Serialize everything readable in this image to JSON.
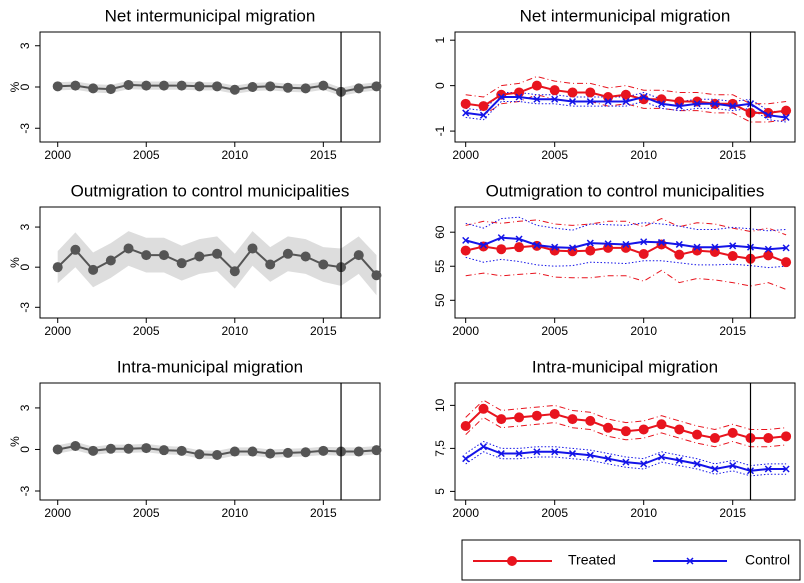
{
  "chart_data": [
    {
      "type": "line",
      "title": "Net intermunicipal migration",
      "ylabel": "%",
      "x": [
        2000,
        2001,
        2002,
        2003,
        2004,
        2005,
        2006,
        2007,
        2008,
        2009,
        2010,
        2011,
        2012,
        2013,
        2014,
        2015,
        2016,
        2017,
        2018
      ],
      "xlim": [
        1999,
        2018.2
      ],
      "xticks": [
        2000,
        2005,
        2010,
        2015
      ],
      "ylim": [
        -4,
        4
      ],
      "yticks": [
        -3,
        0,
        3
      ],
      "vline": 2016,
      "series": [
        {
          "color": "#555555",
          "band_color": "#dddddd",
          "values": [
            0.05,
            0.1,
            -0.1,
            -0.15,
            0.15,
            0.1,
            0.1,
            0.1,
            0.05,
            0.05,
            -0.2,
            0,
            0.05,
            -0.05,
            -0.1,
            0.1,
            -0.35,
            -0.1,
            0.05
          ],
          "ci_lower": [
            -0.25,
            -0.2,
            -0.4,
            -0.45,
            -0.15,
            -0.2,
            -0.2,
            -0.2,
            -0.25,
            -0.25,
            -0.5,
            -0.3,
            -0.25,
            -0.35,
            -0.4,
            -0.2,
            -0.65,
            -0.4,
            -0.25
          ],
          "ci_upper": [
            0.35,
            0.4,
            0.2,
            0.15,
            0.45,
            0.4,
            0.4,
            0.4,
            0.35,
            0.35,
            0.1,
            0.3,
            0.35,
            0.25,
            0.2,
            0.4,
            -0.05,
            0.2,
            0.35
          ]
        }
      ]
    },
    {
      "type": "line",
      "title": "Net intermunicipal migration",
      "x": [
        2000,
        2001,
        2002,
        2003,
        2004,
        2005,
        2006,
        2007,
        2008,
        2009,
        2010,
        2011,
        2012,
        2013,
        2014,
        2015,
        2016,
        2017,
        2018
      ],
      "xlim": [
        1999.4,
        2018.5
      ],
      "xticks": [
        2000,
        2005,
        2010,
        2015
      ],
      "ylim": [
        -1.24,
        1.18
      ],
      "yticks": [
        -1,
        0,
        1
      ],
      "vline": 2016,
      "series": [
        {
          "name": "Treated",
          "color": "#e8141e",
          "marker": "circle",
          "values": [
            -0.4,
            -0.45,
            -0.2,
            -0.15,
            0.0,
            -0.1,
            -0.15,
            -0.15,
            -0.25,
            -0.2,
            -0.3,
            -0.3,
            -0.35,
            -0.35,
            -0.4,
            -0.4,
            -0.6,
            -0.6,
            -0.55
          ],
          "ci_lower": [
            -0.6,
            -0.65,
            -0.4,
            -0.35,
            -0.2,
            -0.3,
            -0.35,
            -0.35,
            -0.45,
            -0.4,
            -0.5,
            -0.5,
            -0.55,
            -0.55,
            -0.6,
            -0.6,
            -0.8,
            -0.8,
            -0.75
          ],
          "ci_upper": [
            -0.2,
            -0.25,
            0.0,
            0.05,
            0.2,
            0.1,
            0.05,
            0.05,
            -0.05,
            0.0,
            -0.1,
            -0.1,
            -0.15,
            -0.15,
            -0.2,
            -0.2,
            -0.4,
            -0.4,
            -0.35
          ]
        },
        {
          "name": "Control",
          "color": "#1414e8",
          "marker": "x",
          "values": [
            -0.6,
            -0.65,
            -0.25,
            -0.25,
            -0.3,
            -0.3,
            -0.35,
            -0.35,
            -0.35,
            -0.35,
            -0.25,
            -0.4,
            -0.45,
            -0.4,
            -0.4,
            -0.45,
            -0.4,
            -0.65,
            -0.7
          ],
          "ci_lower": [
            -0.7,
            -0.75,
            -0.35,
            -0.35,
            -0.4,
            -0.4,
            -0.45,
            -0.45,
            -0.45,
            -0.45,
            -0.35,
            -0.5,
            -0.55,
            -0.5,
            -0.5,
            -0.55,
            -0.5,
            -0.75,
            -0.8
          ],
          "ci_upper": [
            -0.5,
            -0.55,
            -0.15,
            -0.15,
            -0.2,
            -0.2,
            -0.25,
            -0.25,
            -0.25,
            -0.25,
            -0.15,
            -0.3,
            -0.35,
            -0.3,
            -0.3,
            -0.35,
            -0.3,
            -0.55,
            -0.6
          ]
        }
      ]
    },
    {
      "type": "line",
      "title": "Outmigration to control municipalities",
      "ylabel": "%",
      "x": [
        2000,
        2001,
        2002,
        2003,
        2004,
        2005,
        2006,
        2007,
        2008,
        2009,
        2010,
        2011,
        2012,
        2013,
        2014,
        2015,
        2016,
        2017,
        2018
      ],
      "xlim": [
        1999,
        2018.2
      ],
      "xticks": [
        2000,
        2005,
        2010,
        2015
      ],
      "ylim": [
        -3.8,
        4.5
      ],
      "yticks": [
        -3,
        0,
        3
      ],
      "vline": 2016,
      "series": [
        {
          "color": "#555555",
          "band_color": "#dddddd",
          "values": [
            0,
            1.3,
            -0.2,
            0.5,
            1.4,
            0.9,
            0.9,
            0.3,
            0.8,
            1.0,
            -0.3,
            1.4,
            0.2,
            1.0,
            0.8,
            0.2,
            0.0,
            0.9,
            -0.6
          ],
          "ci_lower": [
            -1.2,
            0.0,
            -1.5,
            -0.8,
            0.1,
            -0.4,
            -0.4,
            -1.0,
            -0.5,
            -0.3,
            -1.6,
            0.1,
            -1.1,
            -0.3,
            -0.5,
            -1.1,
            -1.4,
            -0.5,
            -2.1
          ],
          "ci_upper": [
            1.2,
            2.6,
            1.1,
            1.8,
            2.7,
            2.2,
            2.2,
            1.6,
            2.1,
            2.3,
            1.0,
            2.7,
            1.5,
            2.3,
            2.1,
            1.5,
            1.4,
            2.3,
            0.9
          ]
        }
      ]
    },
    {
      "type": "line",
      "title": "Outmigration to control municipalities",
      "x": [
        2000,
        2001,
        2002,
        2003,
        2004,
        2005,
        2006,
        2007,
        2008,
        2009,
        2010,
        2011,
        2012,
        2013,
        2014,
        2015,
        2016,
        2017,
        2018
      ],
      "xlim": [
        1999.4,
        2018.5
      ],
      "xticks": [
        2000,
        2005,
        2010,
        2015
      ],
      "ylim": [
        47.4,
        63.7
      ],
      "yticks": [
        50,
        55,
        60
      ],
      "vline": 2016,
      "series": [
        {
          "name": "Treated",
          "color": "#e8141e",
          "marker": "circle",
          "values": [
            57.3,
            57.9,
            57.5,
            57.8,
            58,
            57.3,
            57.2,
            57.3,
            57.7,
            57.7,
            56.8,
            58.2,
            56.7,
            57.3,
            57.1,
            56.5,
            56.1,
            56.6,
            55.6
          ],
          "ci_lower": [
            53.6,
            54.0,
            53.6,
            53.8,
            54.0,
            53.4,
            53.3,
            53.3,
            53.6,
            53.6,
            52.8,
            54.4,
            52.6,
            53.2,
            53.0,
            52.6,
            52.1,
            52.6,
            51.6
          ],
          "ci_upper": [
            61.0,
            61.6,
            61.3,
            61.6,
            61.8,
            61.2,
            61.0,
            61.2,
            61.6,
            61.6,
            60.8,
            62.0,
            60.8,
            61.4,
            61.2,
            60.6,
            60.1,
            60.6,
            59.6
          ]
        },
        {
          "name": "Control",
          "color": "#1414e8",
          "marker": "x",
          "values": [
            58.8,
            58.1,
            59.2,
            59,
            58.1,
            57.8,
            57.7,
            58.4,
            58.3,
            58.2,
            58.6,
            58.5,
            58.2,
            57.8,
            57.8,
            58,
            57.8,
            57.5,
            57.7
          ],
          "ci_lower": [
            56.3,
            55.6,
            56.0,
            55.7,
            55.2,
            55.0,
            55.1,
            55.6,
            55.5,
            55.4,
            55.8,
            55.8,
            55.5,
            55.2,
            55.2,
            55.3,
            55.1,
            54.8,
            55.0
          ],
          "ci_upper": [
            61.3,
            60.6,
            62.0,
            62.2,
            61.0,
            60.6,
            60.3,
            61.2,
            61.1,
            61.0,
            61.4,
            61.2,
            60.9,
            60.4,
            60.4,
            60.7,
            60.5,
            60.2,
            60.4
          ]
        }
      ]
    },
    {
      "type": "line",
      "title": "Intra-municipal migration",
      "ylabel": "%",
      "x": [
        2000,
        2001,
        2002,
        2003,
        2004,
        2005,
        2006,
        2007,
        2008,
        2009,
        2010,
        2011,
        2012,
        2013,
        2014,
        2015,
        2016,
        2017,
        2018
      ],
      "xlim": [
        1999,
        2018.2
      ],
      "xticks": [
        2000,
        2005,
        2010,
        2015
      ],
      "ylim": [
        -3.65,
        4.8
      ],
      "yticks": [
        -3,
        0,
        3
      ],
      "vline": 2016,
      "series": [
        {
          "color": "#555555",
          "band_color": "#dddddd",
          "values": [
            0,
            0.25,
            -0.1,
            0.05,
            0.05,
            0.1,
            -0.05,
            -0.1,
            -0.35,
            -0.4,
            -0.15,
            -0.15,
            -0.3,
            -0.25,
            -0.2,
            -0.1,
            -0.15,
            -0.15,
            -0.05
          ],
          "ci_lower": [
            -0.3,
            -0.05,
            -0.4,
            -0.25,
            -0.25,
            -0.2,
            -0.35,
            -0.4,
            -0.65,
            -0.7,
            -0.45,
            -0.45,
            -0.6,
            -0.55,
            -0.5,
            -0.4,
            -0.45,
            -0.45,
            -0.35
          ],
          "ci_upper": [
            0.3,
            0.55,
            0.2,
            0.35,
            0.35,
            0.4,
            0.25,
            0.2,
            -0.05,
            -0.1,
            0.15,
            0.15,
            0.0,
            0.05,
            0.1,
            0.2,
            0.15,
            0.15,
            0.25
          ]
        }
      ]
    },
    {
      "type": "line",
      "title": "Intra-municipal migration",
      "x": [
        2000,
        2001,
        2002,
        2003,
        2004,
        2005,
        2006,
        2007,
        2008,
        2009,
        2010,
        2011,
        2012,
        2013,
        2014,
        2015,
        2016,
        2017,
        2018
      ],
      "xlim": [
        1999.4,
        2018.5
      ],
      "xticks": [
        2000,
        2005,
        2010,
        2015
      ],
      "ylim": [
        4.5,
        11.3
      ],
      "yticks": [
        {
          "value": 5,
          "label": "5"
        },
        {
          "value": 7.5,
          "label": "7,5"
        },
        {
          "value": 10,
          "label": "10"
        }
      ],
      "vline": 2016,
      "series": [
        {
          "name": "Treated",
          "color": "#e8141e",
          "marker": "circle",
          "values": [
            8.8,
            9.8,
            9.2,
            9.3,
            9.4,
            9.5,
            9.2,
            9.1,
            8.7,
            8.5,
            8.6,
            8.9,
            8.6,
            8.3,
            8.1,
            8.4,
            8.1,
            8.1,
            8.2
          ],
          "ci_lower": [
            8.3,
            9.3,
            8.7,
            8.8,
            8.9,
            9.0,
            8.7,
            8.6,
            8.2,
            8.0,
            8.1,
            8.4,
            8.1,
            7.8,
            7.6,
            7.9,
            7.6,
            7.6,
            7.7
          ],
          "ci_upper": [
            9.3,
            10.3,
            9.7,
            9.8,
            9.9,
            10.0,
            9.7,
            9.6,
            9.2,
            9.0,
            9.1,
            9.4,
            9.1,
            8.8,
            8.6,
            8.9,
            8.6,
            8.6,
            8.7
          ]
        },
        {
          "name": "Control",
          "color": "#1414e8",
          "marker": "x",
          "values": [
            6.9,
            7.6,
            7.2,
            7.2,
            7.3,
            7.3,
            7.2,
            7.1,
            6.9,
            6.7,
            6.6,
            7.0,
            6.8,
            6.6,
            6.3,
            6.5,
            6.2,
            6.3,
            6.3
          ],
          "ci_lower": [
            6.6,
            7.3,
            6.9,
            6.9,
            7.0,
            7.0,
            6.9,
            6.8,
            6.6,
            6.4,
            6.3,
            6.7,
            6.5,
            6.3,
            6.0,
            6.2,
            5.9,
            6.0,
            6.0
          ],
          "ci_upper": [
            7.2,
            7.9,
            7.5,
            7.5,
            7.6,
            7.6,
            7.5,
            7.4,
            7.2,
            7.0,
            6.9,
            7.3,
            7.1,
            6.9,
            6.6,
            6.8,
            6.5,
            6.6,
            6.6
          ]
        }
      ]
    }
  ]
}
